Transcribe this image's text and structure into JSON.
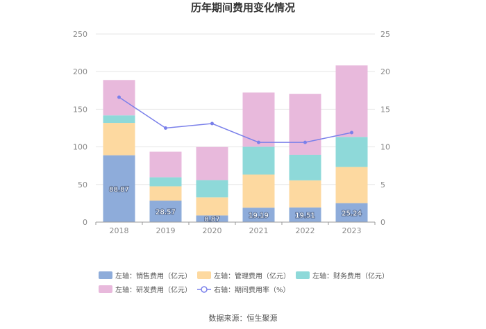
{
  "chart_data": {
    "type": "bar",
    "subtype": "stacked-bar-with-line",
    "title": "历年期间费用变化情况",
    "categories": [
      "2018",
      "2019",
      "2020",
      "2021",
      "2022",
      "2023"
    ],
    "left_axis": {
      "ylim": [
        0,
        250
      ],
      "ticks": [
        "0",
        "50",
        "100",
        "150",
        "200",
        "250"
      ]
    },
    "right_axis": {
      "ylim": [
        0,
        25
      ],
      "ticks": [
        "0",
        "5",
        "10",
        "15",
        "20",
        "25"
      ]
    },
    "series": [
      {
        "name": "左轴：销售费用（亿元）",
        "axis": "left",
        "kind": "bar",
        "color": "#8eacda",
        "values": [
          88.87,
          28.57,
          8.87,
          19.19,
          19.51,
          25.24
        ],
        "show_labels": true
      },
      {
        "name": "左轴：管理费用（亿元）",
        "axis": "left",
        "kind": "bar",
        "color": "#fdd9a0",
        "values": [
          43,
          19,
          24,
          44,
          36,
          48
        ],
        "show_labels": false
      },
      {
        "name": "左轴：财务费用（亿元）",
        "axis": "left",
        "kind": "bar",
        "color": "#8ed9d9",
        "values": [
          10,
          12,
          23,
          37,
          34,
          40
        ],
        "show_labels": false
      },
      {
        "name": "左轴：研发费用（亿元）",
        "axis": "left",
        "kind": "bar",
        "color": "#e8b9dc",
        "values": [
          47,
          34,
          44,
          72,
          81,
          95
        ],
        "show_labels": false
      },
      {
        "name": "右轴：期间费用率（%）",
        "axis": "right",
        "kind": "line",
        "color": "#7a80ea",
        "values": [
          16.6,
          12.5,
          13.1,
          10.6,
          10.6,
          11.9
        ]
      }
    ],
    "grid": true,
    "legend_position": "bottom"
  },
  "source": "数据来源：恒生聚源"
}
